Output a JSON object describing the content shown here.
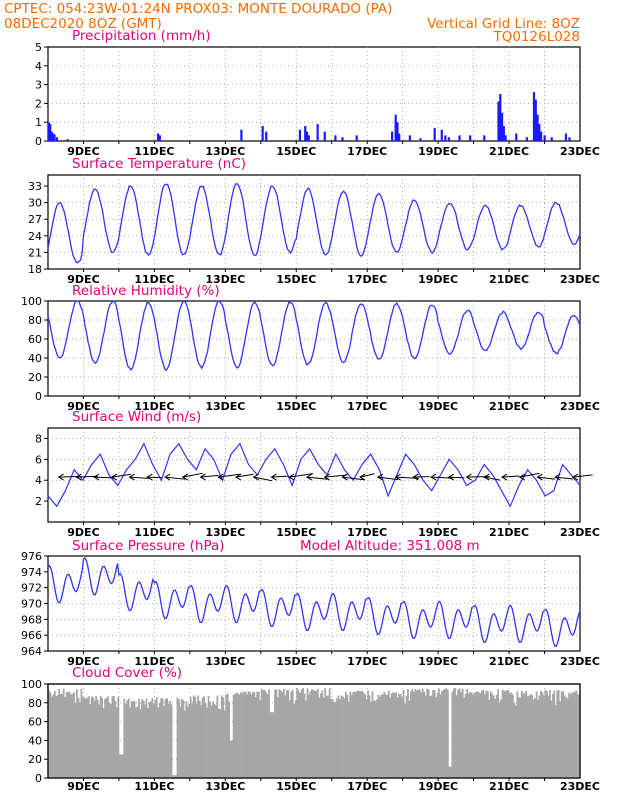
{
  "header": {
    "line1_left": "CPTEC:   054:23W-01:24N   PROX03: MONTE DOURADO (PA)",
    "line2_left": "08DEC2020 8OZ (GMT)",
    "line2_right": "Vertical Grid Line: 8OZ",
    "line3_right": "TQ0126L028"
  },
  "colors": {
    "line": "#3333ff",
    "bar": "#1a1aff",
    "cloud": "#a6a6a6",
    "header": "#ff6a00",
    "panel_title": "#e6007e",
    "grid": "#999999"
  },
  "x_axis": {
    "start": "08DEC2020 08Z",
    "end": "23DEC2020 08Z",
    "tick_labels": [
      "9DEC",
      "11DEC",
      "13DEC",
      "15DEC",
      "17DEC",
      "19DEC",
      "21DEC",
      "23DEC"
    ]
  },
  "chart_data": [
    {
      "id": "precip",
      "type": "bar",
      "title": "Precipitation (mm/h)",
      "ylim": [
        0,
        5
      ],
      "yticks": [
        0,
        1,
        2,
        3,
        4,
        5
      ],
      "x_day_offsets": [
        0.02,
        0.06,
        0.1,
        0.14,
        0.18,
        0.25,
        0.55,
        3.1,
        3.15,
        5.45,
        6.05,
        6.15,
        7.1,
        7.25,
        7.3,
        7.35,
        7.6,
        7.8,
        8.1,
        8.3,
        8.7,
        9.7,
        9.8,
        9.85,
        9.9,
        10.2,
        10.5,
        10.9,
        11.1,
        11.2,
        11.3,
        11.6,
        11.9,
        12.3,
        12.7,
        12.75,
        12.8,
        12.85,
        12.9,
        13.2,
        13.5,
        13.7,
        13.75,
        13.8,
        13.85,
        13.9,
        14.0,
        14.2,
        14.6,
        14.7
      ],
      "values": [
        1.0,
        0.9,
        0.5,
        0.4,
        0.35,
        0.2,
        0.1,
        0.4,
        0.3,
        0.6,
        0.8,
        0.5,
        0.6,
        0.8,
        0.5,
        0.3,
        0.9,
        0.5,
        0.3,
        0.2,
        0.3,
        0.5,
        1.4,
        1.0,
        0.4,
        0.3,
        0.15,
        0.7,
        0.6,
        0.3,
        0.2,
        0.3,
        0.3,
        0.3,
        2.1,
        2.5,
        1.5,
        0.8,
        0.3,
        0.4,
        0.2,
        2.6,
        2.2,
        1.4,
        0.9,
        0.5,
        0.3,
        0.2,
        0.4,
        0.2
      ]
    },
    {
      "id": "temp",
      "type": "line",
      "title": "Surface Temperature (nC)",
      "ylim": [
        18,
        35
      ],
      "yticks": [
        18,
        21,
        24,
        27,
        30,
        33
      ],
      "days_max": [
        30,
        32.5,
        33,
        33.5,
        33,
        33.5,
        33,
        32.5,
        32,
        31.5,
        30.5,
        30,
        29.5,
        29.5,
        30
      ],
      "days_min": [
        19,
        21,
        20.5,
        20.5,
        20.5,
        20.5,
        21,
        20.5,
        20.5,
        21,
        21,
        21.5,
        21.5,
        22,
        22.5
      ]
    },
    {
      "id": "rh",
      "type": "line",
      "title": "Relative Humidity (%)",
      "ylim": [
        0,
        100
      ],
      "yticks": [
        0,
        20,
        40,
        60,
        80,
        100
      ],
      "days_max": [
        100,
        100,
        98,
        100,
        100,
        99,
        99,
        98,
        98,
        97,
        96,
        90,
        88,
        88,
        85
      ],
      "days_min": [
        40,
        35,
        28,
        28,
        30,
        30,
        32,
        33,
        35,
        38,
        40,
        45,
        48,
        50,
        45
      ]
    },
    {
      "id": "wind",
      "type": "line",
      "title": "Surface Wind (m/s)",
      "ylim": [
        0,
        9
      ],
      "yticks": [
        2,
        4,
        6,
        8
      ],
      "speed": [
        2.5,
        1.5,
        3.0,
        5.0,
        4.0,
        5.5,
        6.5,
        4.5,
        3.5,
        5.0,
        6.0,
        7.5,
        5.5,
        4.0,
        6.5,
        7.5,
        6.0,
        5.0,
        7.0,
        6.0,
        4.0,
        6.5,
        7.5,
        5.5,
        4.5,
        6.0,
        7.0,
        5.5,
        3.5,
        6.0,
        7.0,
        5.5,
        4.5,
        6.5,
        5.0,
        4.0,
        5.5,
        6.5,
        5.0,
        2.5,
        4.5,
        6.5,
        5.5,
        4.0,
        3.0,
        4.5,
        6.0,
        5.0,
        3.5,
        4.0,
        5.5,
        4.5,
        3.0,
        1.5,
        3.5,
        5.0,
        4.0,
        2.5,
        3.0,
        5.5,
        4.5,
        3.5
      ],
      "arrows_per_day": 2
    },
    {
      "id": "pressure",
      "type": "line",
      "title": "Surface Pressure (hPa)",
      "annotation": "Model Altitude: 351.008 m",
      "ylim": [
        964,
        976
      ],
      "yticks": [
        964,
        966,
        968,
        970,
        972,
        974,
        976
      ],
      "base": [
        972.5,
        973.5,
        971.5,
        970.5,
        970,
        970,
        969.5,
        969,
        969,
        968.5,
        968,
        968,
        967.5,
        967.5,
        967
      ]
    },
    {
      "id": "cloud",
      "type": "area",
      "title": "Cloud Cover (%)",
      "ylim": [
        0,
        100
      ],
      "yticks": [
        0,
        20,
        40,
        60,
        80,
        100
      ],
      "base_levels": [
        95,
        88,
        85,
        86,
        88,
        92,
        95,
        96,
        93,
        94,
        95,
        96,
        95,
        93,
        94
      ],
      "dips": [
        {
          "day": 3.55,
          "value": 3
        },
        {
          "day": 5.15,
          "value": 40
        },
        {
          "day": 6.3,
          "value": 70
        },
        {
          "day": 11.3,
          "value": 12
        },
        {
          "day": 2.05,
          "value": 25
        }
      ]
    }
  ]
}
